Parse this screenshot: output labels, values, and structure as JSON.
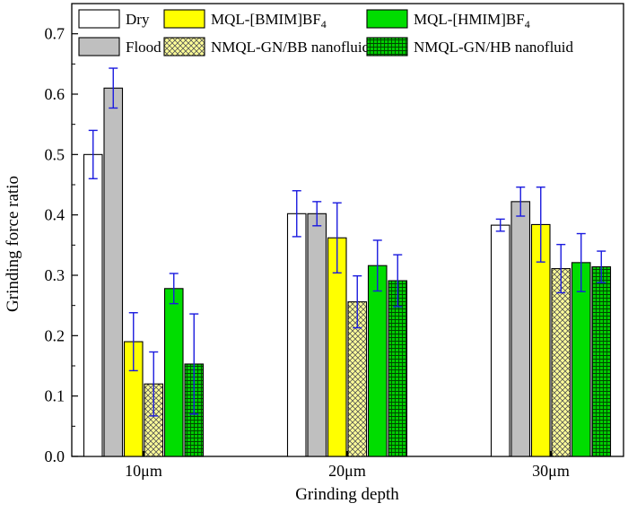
{
  "chart_data": {
    "type": "bar",
    "xlabel": "Grinding depth",
    "ylabel": "Grinding force ratio",
    "ylim": [
      0,
      0.75
    ],
    "yticks": [
      "0.0",
      "0.1",
      "0.2",
      "0.3",
      "0.4",
      "0.5",
      "0.6",
      "0.7"
    ],
    "categories": [
      "10μm",
      "20μm",
      "30μm"
    ],
    "grid": false,
    "legend_position": "top",
    "series": [
      {
        "name": "Dry",
        "fill": "#ffffff",
        "pattern": "none",
        "values": [
          0.5,
          0.402,
          0.383
        ],
        "errors": [
          0.04,
          0.038,
          0.01
        ]
      },
      {
        "name": "Flood",
        "fill": "#bfbfbf",
        "pattern": "none",
        "values": [
          0.61,
          0.402,
          0.422
        ],
        "errors": [
          0.033,
          0.02,
          0.024
        ]
      },
      {
        "name": "MQL-[BMIM]BF",
        "name_sub": "4",
        "fill": "#ffff00",
        "pattern": "none",
        "values": [
          0.19,
          0.362,
          0.384
        ],
        "errors": [
          0.048,
          0.058,
          0.062
        ]
      },
      {
        "name": "NMQL-GN/BB nanofluid",
        "fill": "#ffff99",
        "pattern": "crosshatch",
        "values": [
          0.12,
          0.256,
          0.311
        ],
        "errors": [
          0.053,
          0.043,
          0.04
        ]
      },
      {
        "name": "MQL-[HMIM]BF",
        "name_sub": "4",
        "fill": "#00dd00",
        "pattern": "none",
        "values": [
          0.278,
          0.316,
          0.321
        ],
        "errors": [
          0.025,
          0.042,
          0.048
        ]
      },
      {
        "name": "NMQL-GN/HB nanofluid",
        "fill": "#00cc00",
        "pattern": "grid",
        "values": [
          0.153,
          0.291,
          0.314
        ],
        "errors": [
          0.083,
          0.043,
          0.026
        ]
      }
    ],
    "error_bar_color": "#1a1adf"
  }
}
